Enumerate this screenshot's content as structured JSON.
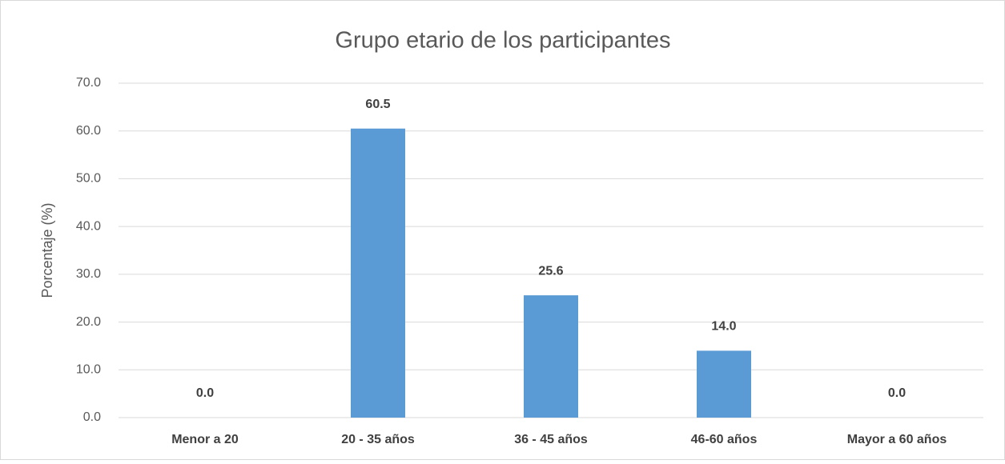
{
  "chart_data": {
    "type": "bar",
    "title": "Grupo etario de los participantes",
    "y_label": "Porcentaje (%)",
    "categories": [
      "Menor a 20",
      "20 - 35 años",
      "36 - 45 años",
      "46-60 años",
      "Mayor a 60 años"
    ],
    "values": [
      0,
      60.5,
      25.6,
      14,
      0
    ],
    "value_labels": [
      "0.0",
      "60.5",
      "25.6",
      "14.0",
      "0.0"
    ],
    "color": "#5b9bd5",
    "ylim": [
      0,
      70
    ],
    "yticks": [
      {
        "value": 0,
        "label": "0.0"
      },
      {
        "value": 10,
        "label": "10.0"
      },
      {
        "value": 20,
        "label": "20.0"
      },
      {
        "value": 30,
        "label": "30.0"
      },
      {
        "value": 40,
        "label": "40.0"
      },
      {
        "value": 50,
        "label": "50.0"
      },
      {
        "value": 60,
        "label": "60.0"
      },
      {
        "value": 70,
        "label": "70.0"
      }
    ],
    "grid": true
  }
}
